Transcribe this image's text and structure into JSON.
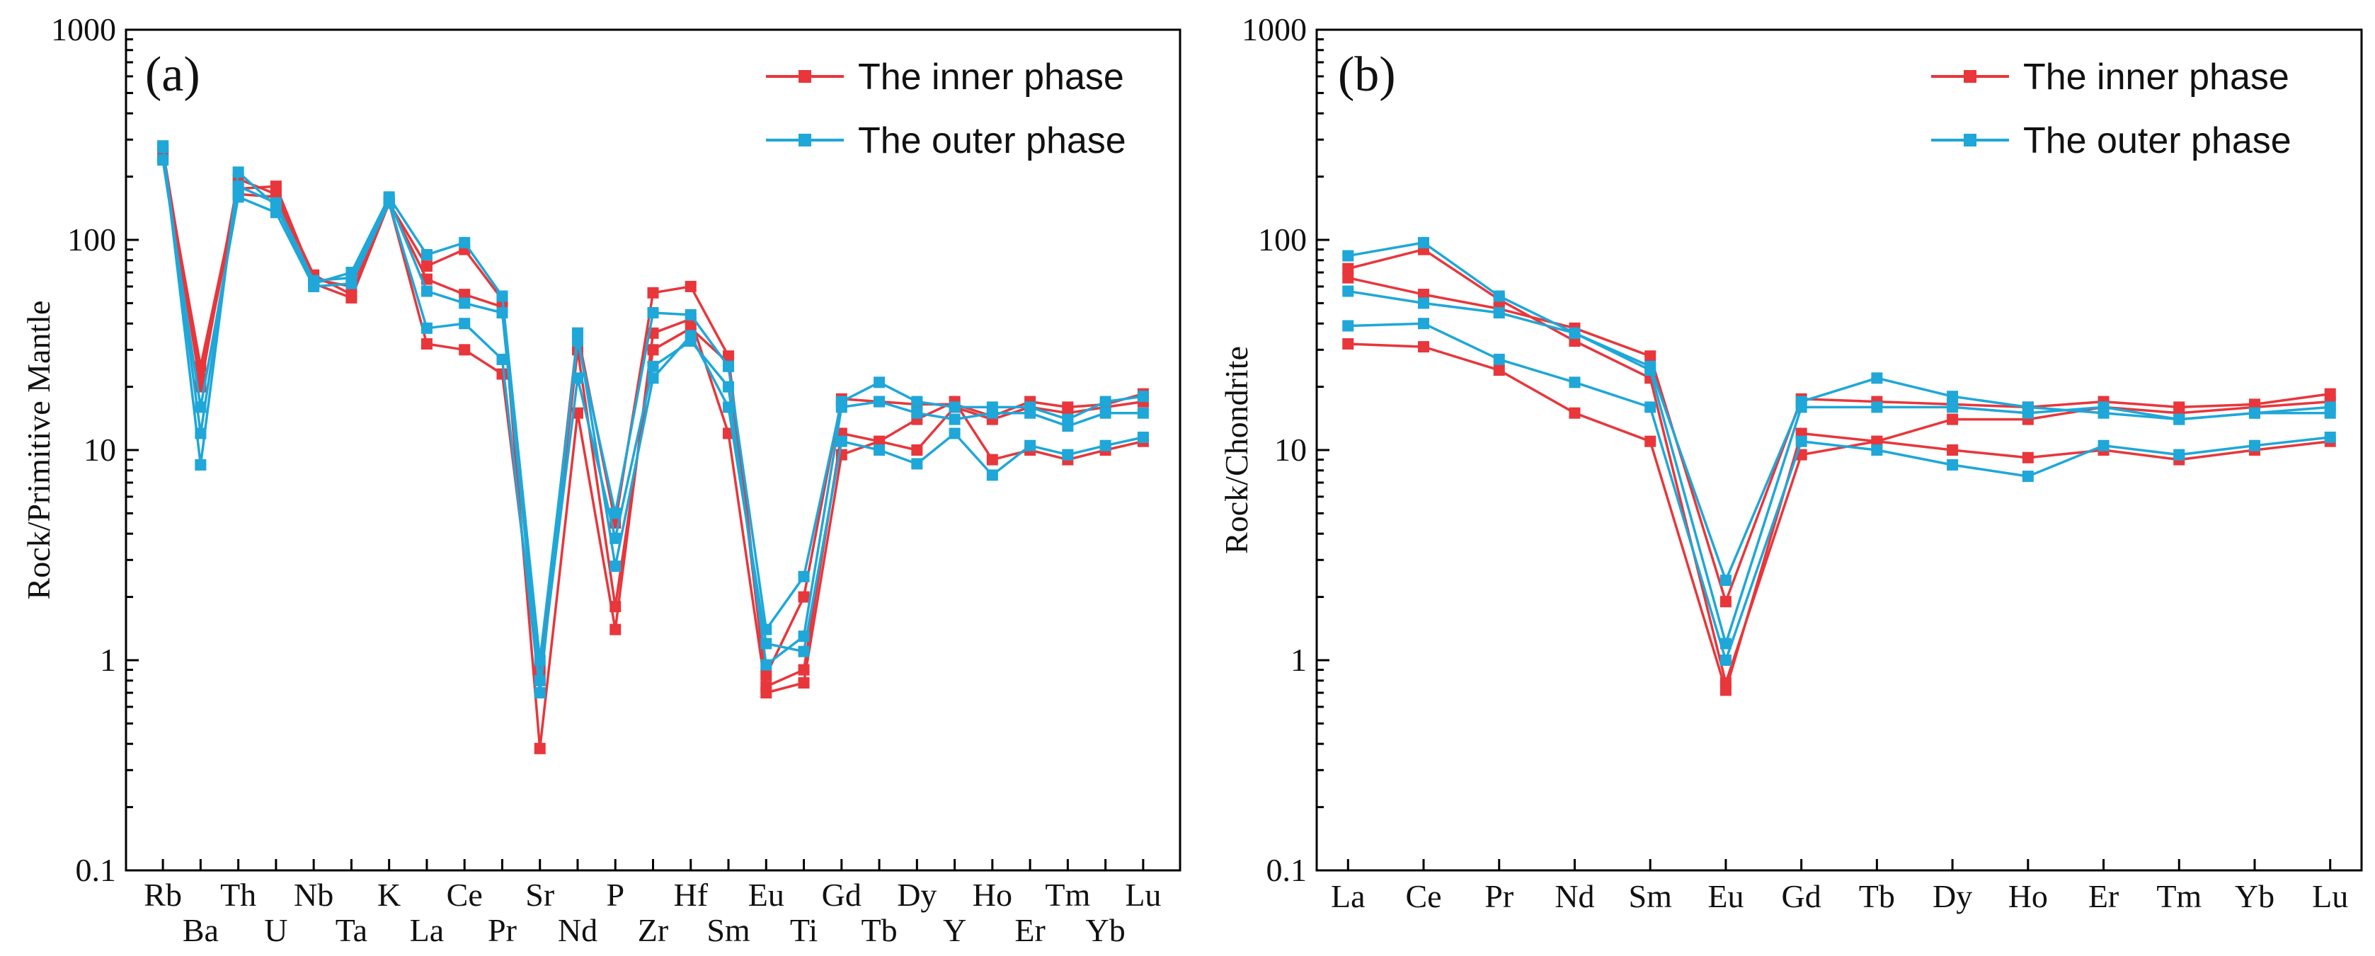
{
  "colors": {
    "inner": "#e8363b",
    "outer": "#1ea7d8"
  },
  "chart_data": [
    {
      "type": "line",
      "panel_label": "(a)",
      "ylabel": "Rock/Primitive Mantle",
      "yscale": "log",
      "ylim": [
        0.1,
        1000
      ],
      "ytick_labels": [
        "0.1",
        "1",
        "10",
        "100",
        "1000"
      ],
      "legend": {
        "placement": "top-right",
        "entries": [
          "The inner phase",
          "The outer phase"
        ]
      },
      "categories": [
        "Rb",
        "Ba",
        "Th",
        "U",
        "Nb",
        "Ta",
        "K",
        "La",
        "Ce",
        "Pr",
        "Sr",
        "Nd",
        "P",
        "Zr",
        "Hf",
        "Sm",
        "Eu",
        "Ti",
        "Gd",
        "Tb",
        "Dy",
        "Y",
        "Ho",
        "Er",
        "Tm",
        "Yb",
        "Lu"
      ],
      "series": [
        {
          "name": "The inner phase",
          "group": "inner",
          "values": [
            260,
            20,
            195,
            165,
            68,
            55,
            150,
            65,
            55,
            48,
            0.9,
            36,
            4.5,
            56,
            60,
            28,
            0.85,
            2.0,
            17.5,
            17,
            16.5,
            16.5,
            14.5,
            17,
            16,
            16.5,
            18.5
          ]
        },
        {
          "name": "The inner phase",
          "group": "inner",
          "values": [
            250,
            25,
            175,
            180,
            65,
            60,
            150,
            75,
            90,
            52,
            0.38,
            15,
            1.4,
            36,
            42,
            12,
            0.7,
            0.78,
            9.5,
            11,
            14,
            17,
            9,
            10,
            9,
            10,
            11
          ]
        },
        {
          "name": "The inner phase",
          "group": "inner",
          "values": [
            270,
            22,
            165,
            160,
            62,
            53,
            150,
            32,
            30,
            23,
            0.8,
            30,
            1.8,
            30,
            38,
            26,
            0.75,
            0.9,
            12,
            11,
            10,
            16,
            14,
            16,
            15,
            16,
            17
          ]
        },
        {
          "name": "The outer phase",
          "group": "outer",
          "values": [
            280,
            8.5,
            210,
            145,
            62,
            70,
            160,
            85,
            97,
            54,
            1.0,
            33,
            5.0,
            45,
            44,
            25,
            1.4,
            2.5,
            17,
            21,
            17,
            16,
            16,
            16,
            14,
            17,
            18
          ]
        },
        {
          "name": "The outer phase",
          "group": "outer",
          "values": [
            275,
            12,
            180,
            150,
            64,
            66,
            155,
            57,
            50,
            45,
            0.8,
            22,
            3.8,
            25,
            33,
            20,
            0.95,
            1.3,
            16,
            17,
            15,
            14,
            15,
            15,
            13,
            15,
            15
          ]
        },
        {
          "name": "The outer phase",
          "group": "outer",
          "values": [
            240,
            16,
            160,
            135,
            60,
            62,
            150,
            38,
            40,
            27,
            0.7,
            36,
            2.8,
            22,
            35,
            16,
            1.2,
            1.1,
            11,
            10,
            8.6,
            12,
            7.6,
            10.5,
            9.5,
            10.5,
            11.5
          ]
        }
      ]
    },
    {
      "type": "line",
      "panel_label": "(b)",
      "ylabel": "Rock/Chondrite",
      "yscale": "log",
      "ylim": [
        0.1,
        1000
      ],
      "ytick_labels": [
        "0.1",
        "1",
        "10",
        "100",
        "1000"
      ],
      "legend": {
        "placement": "top-right",
        "entries": [
          "The inner phase",
          "The outer phase"
        ]
      },
      "categories": [
        "La",
        "Ce",
        "Pr",
        "Nd",
        "Sm",
        "Eu",
        "Gd",
        "Tb",
        "Dy",
        "Ho",
        "Er",
        "Tm",
        "Yb",
        "Lu"
      ],
      "series": [
        {
          "name": "The inner phase",
          "group": "inner",
          "values": [
            66,
            55,
            47,
            38,
            28,
            1.9,
            17.5,
            17,
            16.5,
            16,
            17,
            16,
            16.5,
            18.5
          ]
        },
        {
          "name": "The inner phase",
          "group": "inner",
          "values": [
            73,
            90,
            52,
            33,
            22,
            0.78,
            9.5,
            11,
            14,
            14,
            16,
            15,
            16,
            17
          ]
        },
        {
          "name": "The inner phase",
          "group": "inner",
          "values": [
            32,
            31,
            24,
            15,
            11,
            0.72,
            12,
            11,
            10,
            9.2,
            10,
            9,
            10,
            11
          ]
        },
        {
          "name": "The outer phase",
          "group": "outer",
          "values": [
            84,
            97,
            54,
            36,
            25,
            2.4,
            17,
            22,
            18,
            16,
            15,
            14,
            15,
            16
          ]
        },
        {
          "name": "The outer phase",
          "group": "outer",
          "values": [
            57,
            50,
            45,
            36,
            24,
            1.2,
            16,
            16,
            16,
            15,
            16,
            14,
            15,
            15
          ]
        },
        {
          "name": "The outer phase",
          "group": "outer",
          "values": [
            39,
            40,
            27,
            21,
            16,
            1.0,
            11,
            10,
            8.5,
            7.5,
            10.5,
            9.5,
            10.5,
            11.5
          ]
        }
      ]
    }
  ]
}
